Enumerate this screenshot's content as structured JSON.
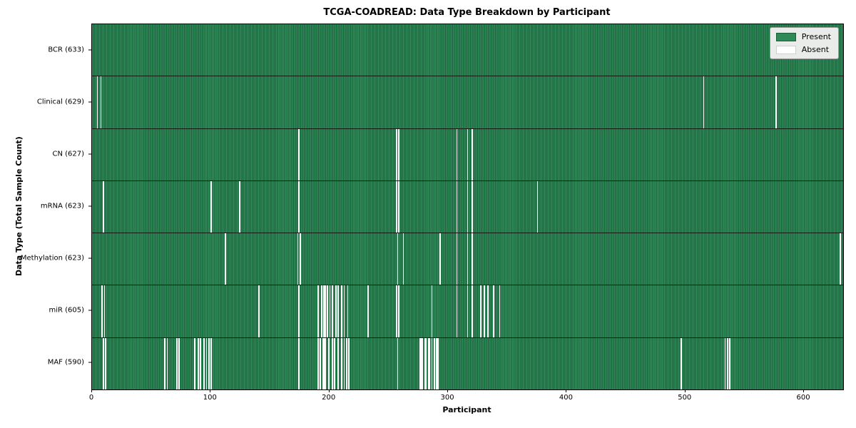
{
  "figure": {
    "title": "TCGA-COADREAD: Data Type Breakdown by Participant",
    "xlabel": "Participant",
    "ylabel": "Data Type (Total Sample Count)"
  },
  "legend": {
    "present_label": "Present",
    "absent_label": "Absent"
  },
  "colors": {
    "present": "#2E8B57",
    "present_edge": "#1f5e3d",
    "absent": "#fbfbfb",
    "row_border": "#101c14",
    "legend_bg": "#e9ece9"
  },
  "chart_data": {
    "type": "heatmap",
    "title": "TCGA-COADREAD: Data Type Breakdown by Participant",
    "xlabel": "Participant",
    "ylabel": "Data Type (Total Sample Count)",
    "n_participants": 633,
    "xlim": [
      0,
      633
    ],
    "x_ticks": [
      0,
      100,
      200,
      300,
      400,
      500,
      600
    ],
    "grid": false,
    "legend_entries": [
      "Present",
      "Absent"
    ],
    "legend_position": "upper right",
    "rows": [
      {
        "name": "BCR",
        "label": "BCR (633)",
        "total_samples": 633,
        "absent_participants": []
      },
      {
        "name": "Clinical",
        "label": "Clinical (629)",
        "total_samples": 629,
        "absent_participants": [
          4,
          7,
          515,
          576
        ]
      },
      {
        "name": "CN",
        "label": "CN (627)",
        "total_samples": 627,
        "absent_participants": [
          174,
          256,
          258,
          307,
          316,
          320
        ]
      },
      {
        "name": "mRNA",
        "label": "mRNA (623)",
        "total_samples": 623,
        "absent_participants": [
          9,
          100,
          124,
          174,
          256,
          258,
          307,
          316,
          320,
          375
        ]
      },
      {
        "name": "Methylation",
        "label": "Methylation (623)",
        "total_samples": 623,
        "absent_participants": [
          112,
          173,
          175,
          257,
          262,
          293,
          307,
          316,
          320,
          630
        ]
      },
      {
        "name": "miR",
        "label": "miR (605)",
        "total_samples": 605,
        "absent_participants": [
          8,
          10,
          140,
          174,
          190,
          193,
          195,
          196,
          198,
          200,
          202,
          205,
          207,
          210,
          212,
          215,
          232,
          256,
          258,
          286,
          307,
          316,
          320,
          327,
          330,
          333,
          338,
          343
        ]
      },
      {
        "name": "MAF",
        "label": "MAF (590)",
        "total_samples": 590,
        "absent_participants": [
          9,
          11,
          61,
          63,
          71,
          73,
          86,
          89,
          91,
          94,
          96,
          98,
          100,
          174,
          190,
          192,
          194,
          195,
          196,
          199,
          202,
          204,
          207,
          210,
          212,
          214,
          216,
          257,
          276,
          277,
          278,
          280,
          281,
          283,
          284,
          286,
          288,
          290,
          291,
          496,
          533,
          535,
          537
        ]
      }
    ]
  }
}
